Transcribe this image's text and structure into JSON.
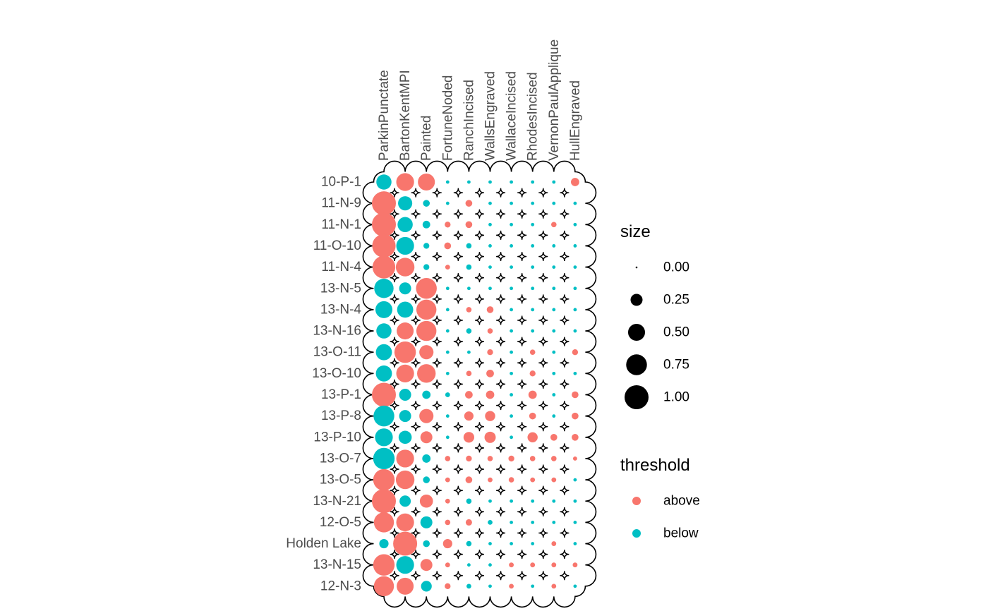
{
  "chart_data": {
    "type": "scatter",
    "rows": [
      "10-P-1",
      "11-N-9",
      "11-N-1",
      "11-O-10",
      "11-N-4",
      "13-N-5",
      "13-N-4",
      "13-N-16",
      "13-O-11",
      "13-O-10",
      "13-P-1",
      "13-P-8",
      "13-P-10",
      "13-O-7",
      "13-O-5",
      "13-N-21",
      "12-O-5",
      "Holden Lake",
      "13-N-15",
      "12-N-3"
    ],
    "columns": [
      "ParkinPunctate",
      "BartonKentMPI",
      "Painted",
      "FortuneNoded",
      "RanchIncised",
      "WallsEngraved",
      "WallaceIncised",
      "RhodesIncised",
      "VernonPaulApplique",
      "HullEngraved"
    ],
    "sizes": [
      [
        0.4,
        0.55,
        0.5,
        0.02,
        0.02,
        0.02,
        0.02,
        0.02,
        0.02,
        0.12
      ],
      [
        1.0,
        0.35,
        0.08,
        0.02,
        0.08,
        0.02,
        0.02,
        0.02,
        0.02,
        0.02
      ],
      [
        1.0,
        0.4,
        0.1,
        0.06,
        0.08,
        0.02,
        0.02,
        0.02,
        0.05,
        0.02
      ],
      [
        0.95,
        0.55,
        0.06,
        0.08,
        0.05,
        0.02,
        0.02,
        0.02,
        0.02,
        0.02
      ],
      [
        0.9,
        0.6,
        0.06,
        0.04,
        0.05,
        0.02,
        0.02,
        0.02,
        0.02,
        0.02
      ],
      [
        0.65,
        0.25,
        0.75,
        0.02,
        0.02,
        0.02,
        0.02,
        0.02,
        0.02,
        0.02
      ],
      [
        0.5,
        0.45,
        0.7,
        0.02,
        0.05,
        0.08,
        0.02,
        0.02,
        0.02,
        0.02
      ],
      [
        0.4,
        0.5,
        0.7,
        0.02,
        0.05,
        0.05,
        0.02,
        0.02,
        0.02,
        0.02
      ],
      [
        0.45,
        0.8,
        0.35,
        0.02,
        0.02,
        0.06,
        0.02,
        0.05,
        0.02,
        0.06
      ],
      [
        0.45,
        0.55,
        0.6,
        0.02,
        0.05,
        0.1,
        0.02,
        0.06,
        0.02,
        0.02
      ],
      [
        1.0,
        0.25,
        0.12,
        0.04,
        0.1,
        0.12,
        0.02,
        0.12,
        0.02,
        0.08
      ],
      [
        0.75,
        0.25,
        0.35,
        0.02,
        0.15,
        0.18,
        0.02,
        0.08,
        0.02,
        0.08
      ],
      [
        0.55,
        0.3,
        0.25,
        0.02,
        0.2,
        0.22,
        0.02,
        0.18,
        0.08,
        0.08
      ],
      [
        0.8,
        0.55,
        0.12,
        0.05,
        0.06,
        0.05,
        0.06,
        0.05,
        0.05,
        0.03
      ],
      [
        0.8,
        0.6,
        0.08,
        0.04,
        0.08,
        0.04,
        0.05,
        0.04,
        0.04,
        0.02
      ],
      [
        1.0,
        0.22,
        0.3,
        0.04,
        0.05,
        0.02,
        0.02,
        0.02,
        0.02,
        0.02
      ],
      [
        0.7,
        0.55,
        0.25,
        0.05,
        0.07,
        0.04,
        0.02,
        0.02,
        0.02,
        0.02
      ],
      [
        0.15,
        1.0,
        0.08,
        0.15,
        0.05,
        0.02,
        0.02,
        0.02,
        0.04,
        0.02
      ],
      [
        0.8,
        0.55,
        0.25,
        0.04,
        0.02,
        0.02,
        0.04,
        0.04,
        0.04,
        0.04
      ],
      [
        0.7,
        0.5,
        0.2,
        0.06,
        0.04,
        0.02,
        0.04,
        0.02,
        0.04,
        0.02
      ]
    ],
    "threshold": [
      [
        "below",
        "above",
        "above",
        "below",
        "below",
        "below",
        "below",
        "below",
        "below",
        "above"
      ],
      [
        "above",
        "below",
        "below",
        "below",
        "above",
        "below",
        "below",
        "below",
        "below",
        "below"
      ],
      [
        "above",
        "below",
        "below",
        "above",
        "above",
        "below",
        "below",
        "below",
        "above",
        "below"
      ],
      [
        "above",
        "below",
        "below",
        "above",
        "below",
        "below",
        "below",
        "below",
        "below",
        "below"
      ],
      [
        "above",
        "above",
        "below",
        "above",
        "below",
        "below",
        "below",
        "below",
        "below",
        "below"
      ],
      [
        "below",
        "below",
        "above",
        "below",
        "below",
        "below",
        "below",
        "below",
        "below",
        "below"
      ],
      [
        "below",
        "below",
        "above",
        "below",
        "above",
        "above",
        "below",
        "below",
        "below",
        "below"
      ],
      [
        "below",
        "above",
        "above",
        "below",
        "below",
        "above",
        "below",
        "below",
        "below",
        "below"
      ],
      [
        "below",
        "above",
        "above",
        "below",
        "below",
        "above",
        "below",
        "above",
        "below",
        "above"
      ],
      [
        "below",
        "above",
        "above",
        "below",
        "above",
        "above",
        "below",
        "above",
        "below",
        "below"
      ],
      [
        "above",
        "below",
        "below",
        "below",
        "above",
        "above",
        "below",
        "above",
        "below",
        "above"
      ],
      [
        "below",
        "below",
        "above",
        "below",
        "above",
        "above",
        "below",
        "above",
        "below",
        "above"
      ],
      [
        "below",
        "below",
        "above",
        "below",
        "above",
        "above",
        "below",
        "above",
        "above",
        "above"
      ],
      [
        "below",
        "above",
        "below",
        "above",
        "above",
        "above",
        "above",
        "above",
        "above",
        "above"
      ],
      [
        "above",
        "above",
        "below",
        "above",
        "above",
        "above",
        "above",
        "above",
        "above",
        "below"
      ],
      [
        "above",
        "below",
        "above",
        "above",
        "below",
        "below",
        "below",
        "below",
        "below",
        "below"
      ],
      [
        "above",
        "above",
        "below",
        "above",
        "above",
        "below",
        "below",
        "below",
        "below",
        "below"
      ],
      [
        "below",
        "above",
        "below",
        "above",
        "below",
        "below",
        "below",
        "below",
        "above",
        "below"
      ],
      [
        "above",
        "below",
        "above",
        "above",
        "below",
        "below",
        "above",
        "above",
        "above",
        "above"
      ],
      [
        "above",
        "above",
        "below",
        "above",
        "below",
        "below",
        "above",
        "below",
        "above",
        "below"
      ]
    ],
    "legend": {
      "size_title": "size",
      "size_breaks": [
        0.0,
        0.25,
        0.5,
        0.75,
        1.0
      ],
      "size_labels": [
        "0.00",
        "0.25",
        "0.50",
        "0.75",
        "1.00"
      ],
      "threshold_title": "threshold",
      "threshold_labels": [
        "above",
        "below"
      ],
      "placement": "right"
    },
    "colors": {
      "above": "#F8766D",
      "below": "#00BFC4",
      "frame": "#000000",
      "label": "#4D4D4D"
    }
  }
}
